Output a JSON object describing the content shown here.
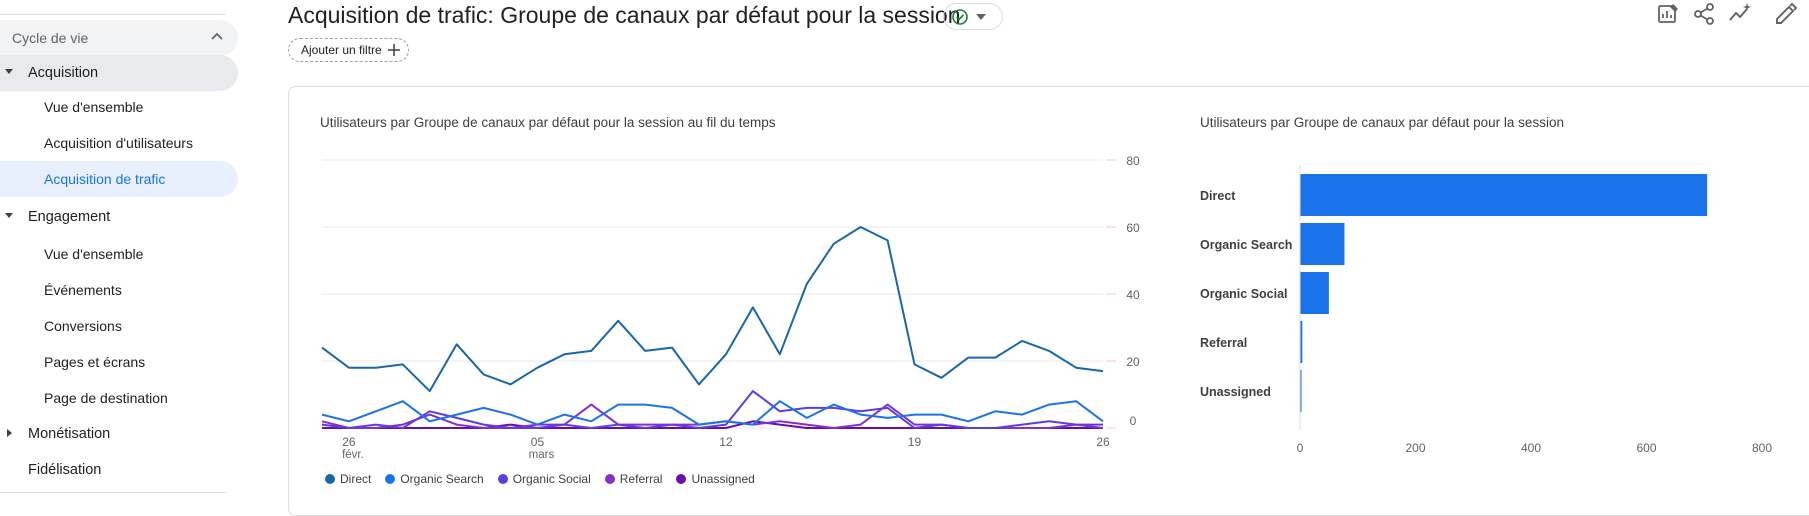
{
  "sidebar": {
    "section_label": "Cycle de vie",
    "groups": [
      {
        "label": "Acquisition",
        "expanded": true,
        "items": [
          "Vue d'ensemble",
          "Acquisition d'utilisateurs",
          "Acquisition de trafic"
        ]
      },
      {
        "label": "Engagement",
        "expanded": true,
        "items": [
          "Vue d'ensemble",
          "Événements",
          "Conversions",
          "Pages et écrans",
          "Page de destination"
        ]
      },
      {
        "label": "Monétisation",
        "expanded": false,
        "items": []
      }
    ],
    "extra_item": "Fidélisation",
    "active_item": "Acquisition de trafic"
  },
  "header": {
    "title": "Acquisition de trafic: Groupe de canaux par défaut pour la session",
    "status_icon": "check-circle-icon",
    "filter_label": "Ajouter un filtre",
    "toolbar_icons": [
      "customize-report-icon",
      "share-icon",
      "insights-icon",
      "edit-icon"
    ]
  },
  "colors": {
    "accent": "#1a73e8",
    "active_bg": "#e8f0fe",
    "status_green": "#188038",
    "direct": "#1967a8",
    "organic_search": "#1a73e8",
    "organic_social": "#5c3de3",
    "referral": "#8430ce",
    "unassigned": "#6a0dad"
  },
  "chart_data": [
    {
      "type": "line",
      "title": "Utilisateurs par Groupe de canaux par défaut pour la session au fil du temps",
      "x_tick_labels": [
        {
          "index": 1,
          "label": "26",
          "sublabel": "févr."
        },
        {
          "index": 8,
          "label": "05",
          "sublabel": "mars"
        },
        {
          "index": 15,
          "label": "12",
          "sublabel": ""
        },
        {
          "index": 22,
          "label": "19",
          "sublabel": ""
        },
        {
          "index": 29,
          "label": "26",
          "sublabel": ""
        }
      ],
      "ylim": [
        0,
        80
      ],
      "y_ticks": [
        0,
        20,
        40,
        60,
        80
      ],
      "grid": true,
      "legend_position": "bottom",
      "series": [
        {
          "name": "Direct",
          "color": "#1967a8",
          "values": [
            24,
            18,
            18,
            19,
            11,
            25,
            16,
            13,
            18,
            22,
            23,
            32,
            23,
            24,
            13,
            22,
            36,
            22,
            43,
            55,
            60,
            56,
            19,
            15,
            21,
            21,
            26,
            23,
            18,
            17
          ]
        },
        {
          "name": "Organic Search",
          "color": "#1a73e8",
          "values": [
            4,
            2,
            5,
            8,
            2,
            4,
            6,
            4,
            1,
            4,
            2,
            7,
            7,
            6,
            1,
            2,
            1,
            8,
            3,
            7,
            4,
            3,
            4,
            4,
            2,
            5,
            4,
            7,
            8,
            2
          ]
        },
        {
          "name": "Organic Social",
          "color": "#5c3de3",
          "values": [
            1,
            0,
            1,
            0,
            5,
            3,
            1,
            0,
            0,
            1,
            0,
            1,
            0,
            1,
            0,
            1,
            11,
            5,
            6,
            6,
            5,
            6,
            0,
            1,
            0,
            0,
            1,
            2,
            1,
            1
          ]
        },
        {
          "name": "Referral",
          "color": "#8430ce",
          "values": [
            2,
            0,
            0,
            1,
            4,
            1,
            0,
            0,
            1,
            1,
            7,
            1,
            1,
            1,
            1,
            2,
            1,
            2,
            1,
            0,
            1,
            7,
            1,
            1,
            0,
            0,
            0,
            0,
            1,
            0
          ]
        },
        {
          "name": "Unassigned",
          "color": "#6a0dad",
          "values": [
            0,
            0,
            0,
            0,
            0,
            0,
            0,
            1,
            0,
            0,
            0,
            0,
            0,
            0,
            0,
            0,
            2,
            1,
            0,
            0,
            0,
            0,
            0,
            0,
            0,
            0,
            0,
            0,
            0,
            0
          ]
        }
      ]
    },
    {
      "type": "bar",
      "orientation": "horizontal",
      "title": "Utilisateurs par Groupe de canaux par défaut pour la session",
      "categories": [
        "Direct",
        "Organic Search",
        "Organic Social",
        "Referral",
        "Unassigned"
      ],
      "values": [
        705,
        77,
        50,
        4,
        1
      ],
      "xlim": [
        0,
        800
      ],
      "x_ticks": [
        0,
        200,
        400,
        600,
        800
      ],
      "color": "#1a73e8",
      "grid": false
    }
  ]
}
